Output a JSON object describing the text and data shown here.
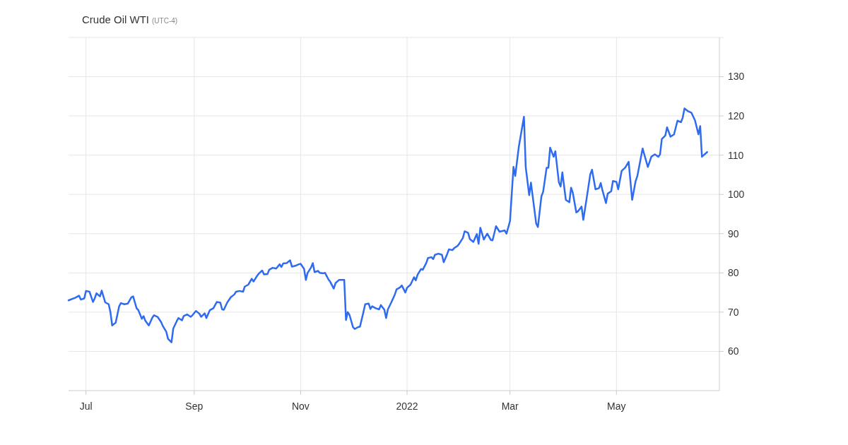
{
  "chart_data": {
    "type": "line",
    "title": "Crude Oil WTI",
    "subtitle": "(UTC-4)",
    "x": [
      "2021-06-21",
      "2021-06-25",
      "2021-06-27",
      "2021-06-28",
      "2021-06-30",
      "2021-07-01",
      "2021-07-03",
      "2021-07-05",
      "2021-07-06",
      "2021-07-07",
      "2021-07-09",
      "2021-07-10",
      "2021-07-12",
      "2021-07-14",
      "2021-07-15",
      "2021-07-16",
      "2021-07-18",
      "2021-07-20",
      "2021-07-21",
      "2021-07-23",
      "2021-07-25",
      "2021-07-27",
      "2021-07-28",
      "2021-07-30",
      "2021-07-31",
      "2021-08-02",
      "2021-08-03",
      "2021-08-04",
      "2021-08-06",
      "2021-08-08",
      "2021-08-09",
      "2021-08-11",
      "2021-08-13",
      "2021-08-14",
      "2021-08-16",
      "2021-08-17",
      "2021-08-19",
      "2021-08-20",
      "2021-08-22",
      "2021-08-23",
      "2021-08-25",
      "2021-08-26",
      "2021-08-28",
      "2021-08-30",
      "2021-08-31",
      "2021-09-02",
      "2021-09-04",
      "2021-09-05",
      "2021-09-07",
      "2021-09-08",
      "2021-09-10",
      "2021-09-12",
      "2021-09-14",
      "2021-09-16",
      "2021-09-17",
      "2021-09-18",
      "2021-09-20",
      "2021-09-22",
      "2021-09-24",
      "2021-09-25",
      "2021-09-27",
      "2021-09-29",
      "2021-09-30",
      "2021-10-02",
      "2021-10-04",
      "2021-10-05",
      "2021-10-07",
      "2021-10-08",
      "2021-10-10",
      "2021-10-11",
      "2021-10-13",
      "2021-10-14",
      "2021-10-16",
      "2021-10-18",
      "2021-10-20",
      "2021-10-21",
      "2021-10-22",
      "2021-10-24",
      "2021-10-26",
      "2021-10-27",
      "2021-10-29",
      "2021-10-31",
      "2021-11-01",
      "2021-11-03",
      "2021-11-04",
      "2021-11-05",
      "2021-11-07",
      "2021-11-08",
      "2021-11-09",
      "2021-11-11",
      "2021-11-12",
      "2021-11-14",
      "2021-11-15",
      "2021-11-17",
      "2021-11-18",
      "2021-11-20",
      "2021-11-21",
      "2021-11-23",
      "2021-11-26",
      "2021-11-27",
      "2021-11-28",
      "2021-11-29",
      "2021-12-01",
      "2021-12-02",
      "2021-12-04",
      "2021-12-05",
      "2021-12-07",
      "2021-12-08",
      "2021-12-10",
      "2021-12-11",
      "2021-12-12",
      "2021-12-14",
      "2021-12-16",
      "2021-12-17",
      "2021-12-19",
      "2021-12-20",
      "2021-12-21",
      "2021-12-23",
      "2021-12-25",
      "2021-12-26",
      "2021-12-28",
      "2021-12-29",
      "2021-12-31",
      "2022-01-01",
      "2022-01-03",
      "2022-01-05",
      "2022-01-06",
      "2022-01-07",
      "2022-01-09",
      "2022-01-10",
      "2022-01-12",
      "2022-01-13",
      "2022-01-15",
      "2022-01-16",
      "2022-01-17",
      "2022-01-19",
      "2022-01-21",
      "2022-01-22",
      "2022-01-24",
      "2022-01-25",
      "2022-01-27",
      "2022-01-28",
      "2022-01-30",
      "2022-01-31",
      "2022-02-02",
      "2022-02-03",
      "2022-02-05",
      "2022-02-06",
      "2022-02-08",
      "2022-02-10",
      "2022-02-11",
      "2022-02-12",
      "2022-02-14",
      "2022-02-15",
      "2022-02-16",
      "2022-02-18",
      "2022-02-19",
      "2022-02-21",
      "2022-02-23",
      "2022-02-26",
      "2022-02-27",
      "2022-03-01",
      "2022-03-03",
      "2022-03-04",
      "2022-03-06",
      "2022-03-09",
      "2022-03-10",
      "2022-03-12",
      "2022-03-13",
      "2022-03-16",
      "2022-03-17",
      "2022-03-19",
      "2022-03-20",
      "2022-03-22",
      "2022-03-23",
      "2022-03-24",
      "2022-03-26",
      "2022-03-27",
      "2022-03-29",
      "2022-03-30",
      "2022-03-31",
      "2022-04-02",
      "2022-04-04",
      "2022-04-05",
      "2022-04-06",
      "2022-04-08",
      "2022-04-09",
      "2022-04-11",
      "2022-04-12",
      "2022-04-14",
      "2022-04-16",
      "2022-04-17",
      "2022-04-19",
      "2022-04-21",
      "2022-04-22",
      "2022-04-23",
      "2022-04-25",
      "2022-04-26",
      "2022-04-28",
      "2022-04-29",
      "2022-05-01",
      "2022-05-02",
      "2022-05-04",
      "2022-05-06",
      "2022-05-08",
      "2022-05-10",
      "2022-05-12",
      "2022-05-13",
      "2022-05-16",
      "2022-05-19",
      "2022-05-21",
      "2022-05-23",
      "2022-05-25",
      "2022-05-26",
      "2022-05-27",
      "2022-05-29",
      "2022-05-30",
      "2022-06-01",
      "2022-06-03",
      "2022-06-05",
      "2022-06-07",
      "2022-06-08",
      "2022-06-09",
      "2022-06-11",
      "2022-06-13",
      "2022-06-15",
      "2022-06-17",
      "2022-06-18",
      "2022-06-19",
      "2022-06-22"
    ],
    "series": [
      {
        "color": "#2f6bf0",
        "values": [
          73.0,
          73.7,
          74.2,
          73.2,
          73.5,
          75.4,
          75.2,
          72.6,
          73.5,
          74.8,
          74.0,
          75.5,
          72.5,
          72.0,
          70.0,
          66.6,
          67.3,
          71.5,
          72.3,
          72.0,
          72.2,
          73.8,
          74.0,
          71.0,
          70.5,
          68.3,
          69.0,
          67.8,
          66.6,
          68.6,
          69.2,
          68.8,
          67.5,
          66.5,
          65.0,
          63.2,
          62.3,
          65.8,
          67.7,
          68.5,
          67.9,
          69.0,
          69.4,
          68.8,
          69.2,
          70.3,
          69.6,
          68.8,
          69.7,
          68.5,
          70.5,
          71.0,
          72.6,
          72.4,
          70.7,
          70.6,
          72.5,
          73.8,
          74.5,
          75.2,
          75.4,
          75.2,
          76.5,
          77.0,
          78.5,
          77.8,
          79.2,
          79.8,
          80.6,
          79.6,
          79.7,
          80.8,
          81.3,
          81.1,
          82.2,
          81.5,
          82.4,
          82.5,
          83.2,
          81.6,
          81.8,
          82.2,
          82.3,
          81.0,
          78.2,
          80.0,
          81.4,
          82.5,
          80.2,
          80.5,
          80.0,
          79.9,
          80.0,
          78.3,
          77.7,
          76.0,
          77.4,
          78.2,
          78.2,
          68.0,
          70.0,
          69.3,
          66.2,
          65.7,
          66.2,
          66.3,
          70.0,
          72.0,
          72.2,
          70.8,
          71.5,
          71.0,
          70.7,
          71.8,
          70.6,
          68.5,
          70.7,
          72.5,
          74.5,
          75.8,
          76.3,
          76.8,
          75.0,
          76.2,
          77.0,
          78.9,
          78.1,
          79.5,
          81.0,
          80.8,
          82.5,
          83.8,
          84.0,
          83.5,
          84.6,
          84.9,
          84.6,
          82.7,
          84.8,
          86.0,
          85.8,
          86.3,
          86.9,
          87.5,
          88.9,
          90.6,
          90.2,
          88.6,
          87.9,
          89.9,
          87.4,
          91.5,
          88.5,
          89.3,
          90.0,
          88.4,
          88.3,
          91.9,
          90.5,
          90.8,
          90.0,
          93.2,
          107.0,
          104.7,
          112.0,
          119.8,
          107.0,
          99.8,
          103.0,
          92.6,
          91.7,
          99.5,
          100.7,
          106.8,
          106.8,
          111.9,
          109.6,
          111.0,
          103.1,
          102.0,
          105.6,
          98.6,
          98.0,
          101.7,
          100.4,
          95.4,
          95.7,
          96.9,
          93.5,
          99.2,
          105.1,
          106.3,
          101.3,
          101.6,
          102.9,
          101.0,
          97.8,
          100.2,
          100.8,
          103.4,
          103.2,
          101.3,
          106.0,
          106.8,
          108.3,
          98.6,
          103.4,
          104.7,
          111.7,
          107.0,
          109.6,
          110.2,
          109.6,
          110.2,
          114.1,
          115.0,
          117.1,
          114.7,
          115.3,
          118.8,
          118.4,
          119.6,
          121.9,
          121.2,
          120.8,
          118.9,
          115.3,
          117.4,
          109.6,
          110.8
        ]
      }
    ],
    "xlim": [
      "2021-06-21",
      "2022-06-29"
    ],
    "xticks": [
      {
        "value": "2021-07-01",
        "label": "Jul"
      },
      {
        "value": "2021-09-01",
        "label": "Sep"
      },
      {
        "value": "2021-11-01",
        "label": "Nov"
      },
      {
        "value": "2022-01-01",
        "label": "2022"
      },
      {
        "value": "2022-03-01",
        "label": "Mar"
      },
      {
        "value": "2022-05-01",
        "label": "May"
      }
    ],
    "ylim": [
      50,
      140
    ],
    "yticks": [
      60,
      70,
      80,
      90,
      100,
      110,
      120,
      130
    ],
    "grid": true,
    "line_style": "solid"
  }
}
